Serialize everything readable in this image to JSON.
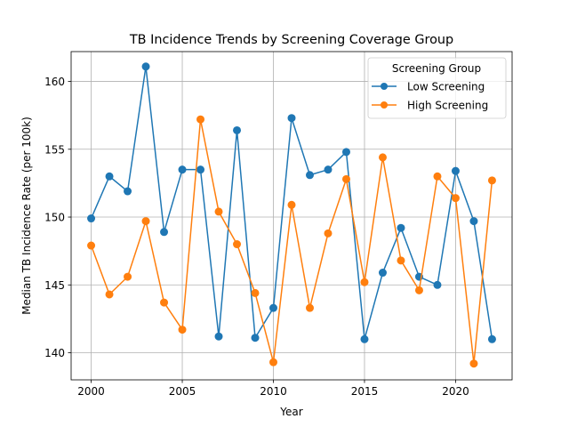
{
  "chart_data": {
    "type": "line",
    "title": "TB Incidence Trends by Screening Coverage Group",
    "xlabel": "Year",
    "ylabel": "Median TB Incidence Rate (per 100k)",
    "xlim": [
      1998.9,
      2023.1
    ],
    "ylim": [
      138.0,
      162.2
    ],
    "xticks": [
      2000,
      2005,
      2010,
      2015,
      2020
    ],
    "yticks": [
      140,
      145,
      150,
      155,
      160
    ],
    "grid": true,
    "legend": {
      "title": "Screening Group",
      "placement": "top-right"
    },
    "x": [
      2000,
      2001,
      2002,
      2003,
      2004,
      2005,
      2006,
      2007,
      2008,
      2009,
      2010,
      2011,
      2012,
      2013,
      2014,
      2015,
      2016,
      2017,
      2018,
      2019,
      2020,
      2021,
      2022
    ],
    "series": [
      {
        "name": "Low Screening",
        "color": "#1f77b4",
        "values": [
          149.9,
          153.0,
          151.9,
          161.1,
          148.9,
          153.5,
          153.5,
          141.2,
          156.4,
          141.1,
          143.3,
          157.3,
          153.1,
          153.5,
          154.8,
          141.0,
          145.9,
          149.2,
          145.6,
          145.0,
          153.4,
          149.7,
          141.0
        ]
      },
      {
        "name": "High Screening",
        "color": "#ff7f0e",
        "values": [
          147.9,
          144.3,
          145.6,
          149.7,
          143.7,
          141.7,
          157.2,
          150.4,
          148.0,
          144.4,
          139.3,
          150.9,
          143.3,
          148.8,
          152.8,
          145.2,
          154.4,
          146.8,
          144.6,
          153.0,
          151.4,
          139.2,
          152.7
        ]
      }
    ]
  }
}
